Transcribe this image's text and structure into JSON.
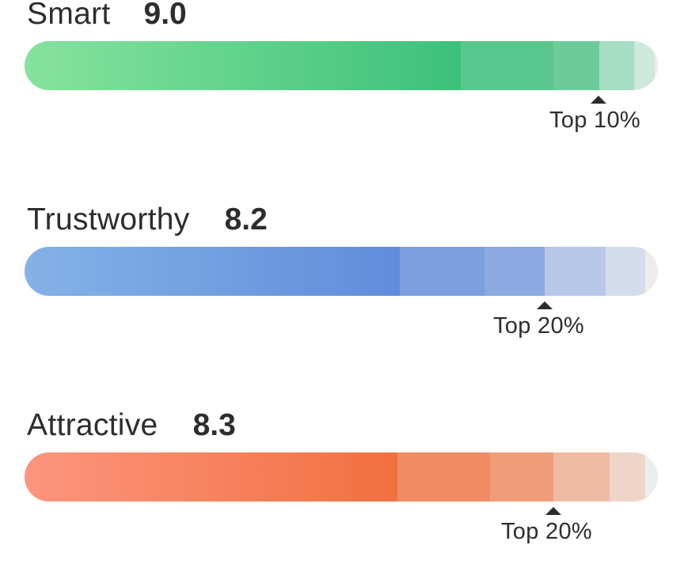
{
  "metrics": [
    {
      "label": "Smart",
      "score": "9.0",
      "percentile_label": "Top 10%",
      "percentile_fraction": 0.9,
      "fill_fraction": 0.995,
      "colors": {
        "gradient_start": "#86e39e",
        "gradient_end": "#3cc17a",
        "band_1": "#59c78d",
        "band_2": "#6dcb99",
        "band_3": "#a6dec3",
        "band_4": "#cde9dc"
      }
    },
    {
      "label": "Trustworthy",
      "score": "8.2",
      "percentile_label": "Top 20%",
      "percentile_fraction": 0.8,
      "fill_fraction": 0.98,
      "colors": {
        "gradient_start": "#84b2e6",
        "gradient_end": "#5f8ddc",
        "band_1": "#7c9fdf",
        "band_2": "#8ba9e0",
        "band_3": "#b7c7e7",
        "band_4": "#d4dcec"
      }
    },
    {
      "label": "Attractive",
      "score": "8.3",
      "percentile_label": "Top 20%",
      "percentile_fraction": 0.8,
      "fill_fraction": 0.98,
      "colors": {
        "gradient_start": "#fd957e",
        "gradient_end": "#f1703f",
        "band_1": "#f08b64",
        "band_2": "#f19c78",
        "band_3": "#f0bba4",
        "band_4": "#efd4c8"
      }
    }
  ]
}
